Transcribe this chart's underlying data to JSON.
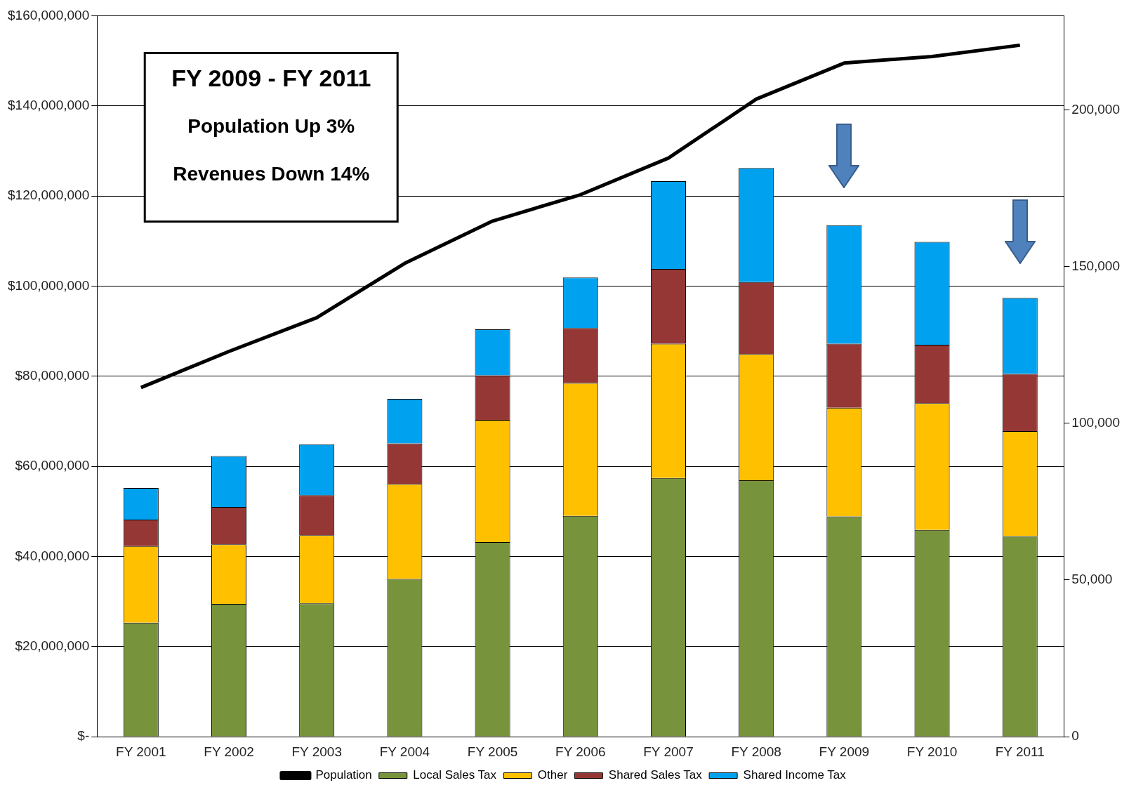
{
  "chart_data": {
    "type": "bar",
    "stacked": true,
    "categories": [
      "FY 2001",
      "FY 2002",
      "FY 2003",
      "FY 2004",
      "FY 2005",
      "FY 2006",
      "FY 2007",
      "FY 2008",
      "FY 2009",
      "FY 2010",
      "FY 2011"
    ],
    "series": [
      {
        "name": "Local Sales Tax",
        "color": "#77933c",
        "values": [
          25300000,
          29500000,
          29600000,
          35000000,
          43200000,
          49000000,
          57400000,
          56900000,
          48900000,
          45900000,
          44500000
        ]
      },
      {
        "name": "Other",
        "color": "#ffc000",
        "values": [
          17000000,
          13200000,
          15100000,
          21100000,
          27100000,
          29500000,
          29800000,
          28000000,
          24100000,
          28100000,
          23300000
        ]
      },
      {
        "name": "Shared Sales Tax",
        "color": "#953735",
        "values": [
          5900000,
          8300000,
          8900000,
          9000000,
          9900000,
          12200000,
          16600000,
          16000000,
          14200000,
          13000000,
          12700000
        ]
      },
      {
        "name": "Shared Income Tax",
        "color": "#00a2f0",
        "values": [
          7000000,
          11300000,
          11300000,
          9900000,
          10200000,
          11200000,
          19500000,
          25300000,
          26300000,
          22800000,
          16900000
        ]
      },
      {
        "name": "Population",
        "type": "line",
        "axis": "y2",
        "color": "#000000",
        "values": [
          111400,
          122900,
          133700,
          151000,
          164500,
          172900,
          184600,
          203400,
          214900,
          217000,
          220600
        ]
      }
    ],
    "ylim": [
      0,
      160000000
    ],
    "yticks": [
      {
        "value": 0,
        "label": "$-"
      },
      {
        "value": 20000000,
        "label": "$20,000,000"
      },
      {
        "value": 40000000,
        "label": "$40,000,000"
      },
      {
        "value": 60000000,
        "label": "$60,000,000"
      },
      {
        "value": 80000000,
        "label": "$80,000,000"
      },
      {
        "value": 100000000,
        "label": "$100,000,000"
      },
      {
        "value": 120000000,
        "label": "$120,000,000"
      },
      {
        "value": 140000000,
        "label": "$140,000,000"
      },
      {
        "value": 160000000,
        "label": "$160,000,000"
      }
    ],
    "y2lim": [
      0,
      230000
    ],
    "y2ticks": [
      0,
      {
        "value": 50000,
        "label": "50,000"
      },
      {
        "value": 100000,
        "label": "100,000"
      },
      {
        "value": 150000,
        "label": "150,000"
      },
      {
        "value": 200000,
        "label": "200,000"
      }
    ],
    "grid": "y",
    "legend": "bottom",
    "marker": "none",
    "annotations": [
      "FY 2009 - FY 2011",
      "Population Up 3%",
      "Revenues Down 14%"
    ]
  }
}
